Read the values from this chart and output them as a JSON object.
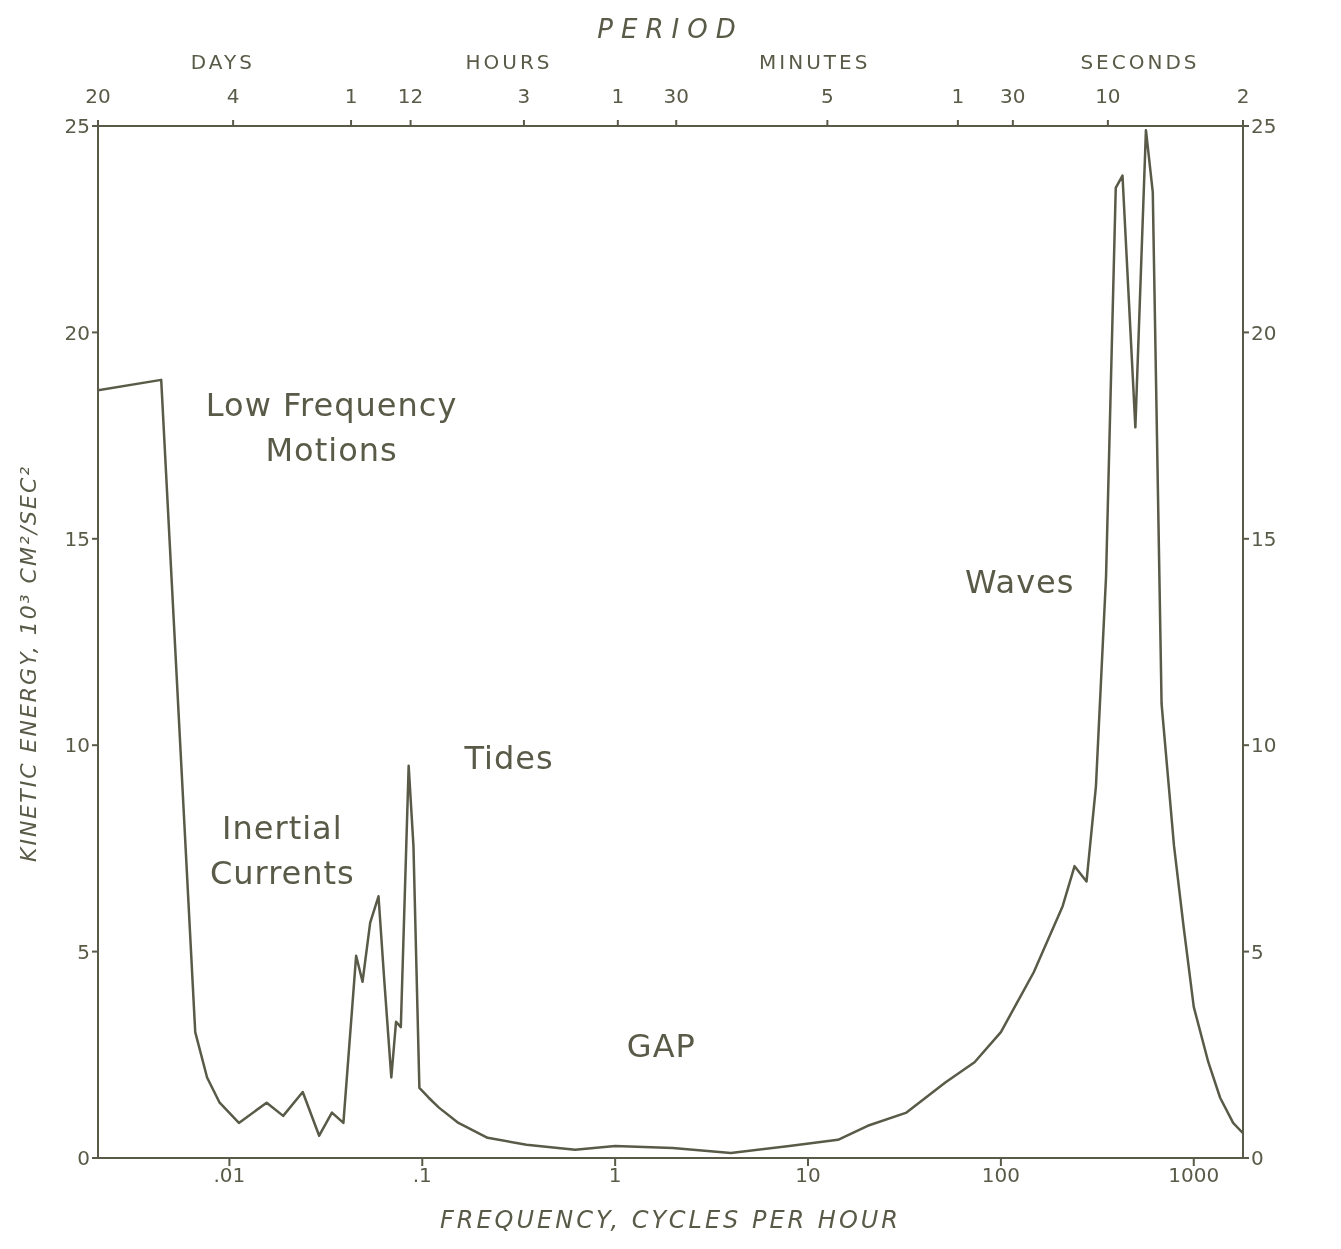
{
  "chart_data": {
    "type": "line",
    "xlabel": "FREQUENCY, CYCLES PER HOUR",
    "ylabel": "KINETIC ENERGY, 10³ CM²/SEC²",
    "x2label": "PERIOD",
    "log": "x",
    "xlim": [
      0.002083,
      1800
    ],
    "xticks": [
      {
        "value": 0.01,
        "label": ".01"
      },
      {
        "value": 0.1,
        "label": ".1"
      },
      1,
      10,
      100,
      1000
    ],
    "ylim": [
      0,
      25
    ],
    "yticks": [
      0,
      5,
      10,
      15,
      20,
      25
    ],
    "y2lim": [
      0,
      25
    ],
    "y2ticks": [
      0,
      5,
      10,
      15,
      20,
      25
    ],
    "grid": false,
    "legend": false,
    "marker": "none",
    "line_style": "solid",
    "series": [
      {
        "color": "#5a5a48",
        "x": [
          0.002083,
          0.00443,
          0.00665,
          0.00766,
          0.0089,
          0.0112,
          0.0156,
          0.019,
          0.024,
          0.0292,
          0.034,
          0.039,
          0.0454,
          0.049,
          0.0537,
          0.0593,
          0.0636,
          0.0691,
          0.0731,
          0.0774,
          0.085,
          0.09,
          0.0966,
          0.108,
          0.122,
          0.154,
          0.218,
          0.347,
          0.62,
          1,
          1.99,
          3.98,
          8.0,
          14.3,
          20.4,
          32.4,
          51.5,
          73,
          100,
          148,
          209,
          241,
          278,
          311,
          351,
          394,
          427,
          498,
          565,
          613,
          681,
          790,
          886,
          1000,
          1190,
          1370,
          1600,
          1800
        ],
        "values": [
          18.6,
          18.85,
          3.05,
          1.95,
          1.34,
          0.85,
          1.34,
          1.02,
          1.6,
          0.54,
          1.1,
          0.85,
          4.9,
          4.27,
          5.7,
          6.34,
          4.27,
          1.95,
          3.3,
          3.17,
          9.5,
          7.56,
          1.7,
          1.46,
          1.22,
          0.85,
          0.49,
          0.32,
          0.2,
          0.29,
          0.24,
          0.12,
          0.29,
          0.44,
          0.78,
          1.1,
          1.83,
          2.32,
          3.05,
          4.5,
          6.1,
          7.07,
          6.7,
          9.0,
          14.1,
          23.5,
          23.8,
          17.7,
          24.9,
          23.4,
          11.0,
          7.56,
          5.6,
          3.66,
          2.32,
          1.46,
          0.85,
          0.6
        ]
      }
    ],
    "annotations": [
      "DAYS",
      "HOURS",
      "MINUTES",
      "SECONDS",
      "Low Frequency\nMotions",
      "Inertial\nCurrents",
      "Tides",
      "GAP",
      "Waves",
      "20",
      "4",
      "1",
      "12",
      "3",
      "1",
      "30",
      "5",
      "1",
      "30",
      "10",
      "2"
    ]
  }
}
